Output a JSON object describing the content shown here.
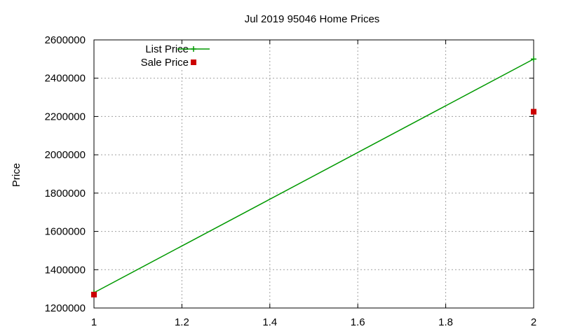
{
  "chart_data": {
    "type": "line",
    "title": "Jul 2019 95046 Home Prices",
    "xlabel": "",
    "ylabel": "Price",
    "xlim": [
      1,
      2
    ],
    "ylim": [
      1200000,
      2600000
    ],
    "xticks": [
      1,
      1.2,
      1.4,
      1.6,
      1.8,
      2
    ],
    "xtick_labels": [
      "1",
      "1.2",
      "1.4",
      "1.6",
      "1.8",
      "2"
    ],
    "yticks": [
      1200000,
      1400000,
      1600000,
      1800000,
      2000000,
      2200000,
      2400000,
      2600000
    ],
    "ytick_labels": [
      "1200000",
      "1400000",
      "1600000",
      "1800000",
      "2000000",
      "2200000",
      "2400000",
      "2600000"
    ],
    "grid": true,
    "legend_position": "top-left",
    "series": [
      {
        "name": "List Price",
        "style": "linespoints",
        "marker": "plus",
        "color": "#009900",
        "x": [
          1,
          2
        ],
        "y": [
          1280000,
          2500000
        ]
      },
      {
        "name": "Sale Price",
        "style": "points",
        "marker": "square",
        "color": "#cc0000",
        "x": [
          1,
          2
        ],
        "y": [
          1270000,
          2225000
        ]
      }
    ]
  }
}
